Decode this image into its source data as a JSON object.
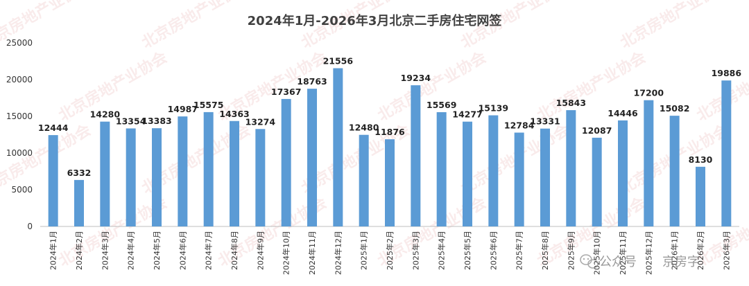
{
  "chart_data": {
    "type": "bar",
    "title": "2024年1月-2026年3月北京二手房住宅网签",
    "xlabel": "",
    "ylabel": "",
    "ylim": [
      0,
      25000
    ],
    "yticks": [
      0,
      5000,
      10000,
      15000,
      20000,
      25000
    ],
    "grid": false,
    "legend": "none",
    "bar_color": "#5b9bd5",
    "categories": [
      "2024年1月",
      "2024年2月",
      "2024年3月",
      "2024年4月",
      "2024年5月",
      "2024年6月",
      "2024年7月",
      "2024年8月",
      "2024年9月",
      "2024年10月",
      "2024年11月",
      "2024年12月",
      "2025年1月",
      "2025年2月",
      "2025年3月",
      "2025年4月",
      "2025年5月",
      "2025年6月",
      "2025年7月",
      "2025年8月",
      "2025年9月",
      "2025年10月",
      "2025年11月",
      "2025年12月",
      "2026年1月",
      "2026年2月",
      "2026年3月"
    ],
    "values": [
      12444,
      6332,
      14280,
      13354,
      13383,
      14987,
      15575,
      14363,
      13274,
      17367,
      18763,
      21556,
      12480,
      11876,
      19234,
      15569,
      14277,
      15139,
      12784,
      13331,
      15843,
      12087,
      14446,
      17200,
      15082,
      8130,
      19886
    ]
  },
  "watermark": {
    "text": "北京房地产业协会",
    "color": "#e6a6a6"
  },
  "branding": {
    "source_label": "公众号",
    "account_name": "京房字"
  }
}
